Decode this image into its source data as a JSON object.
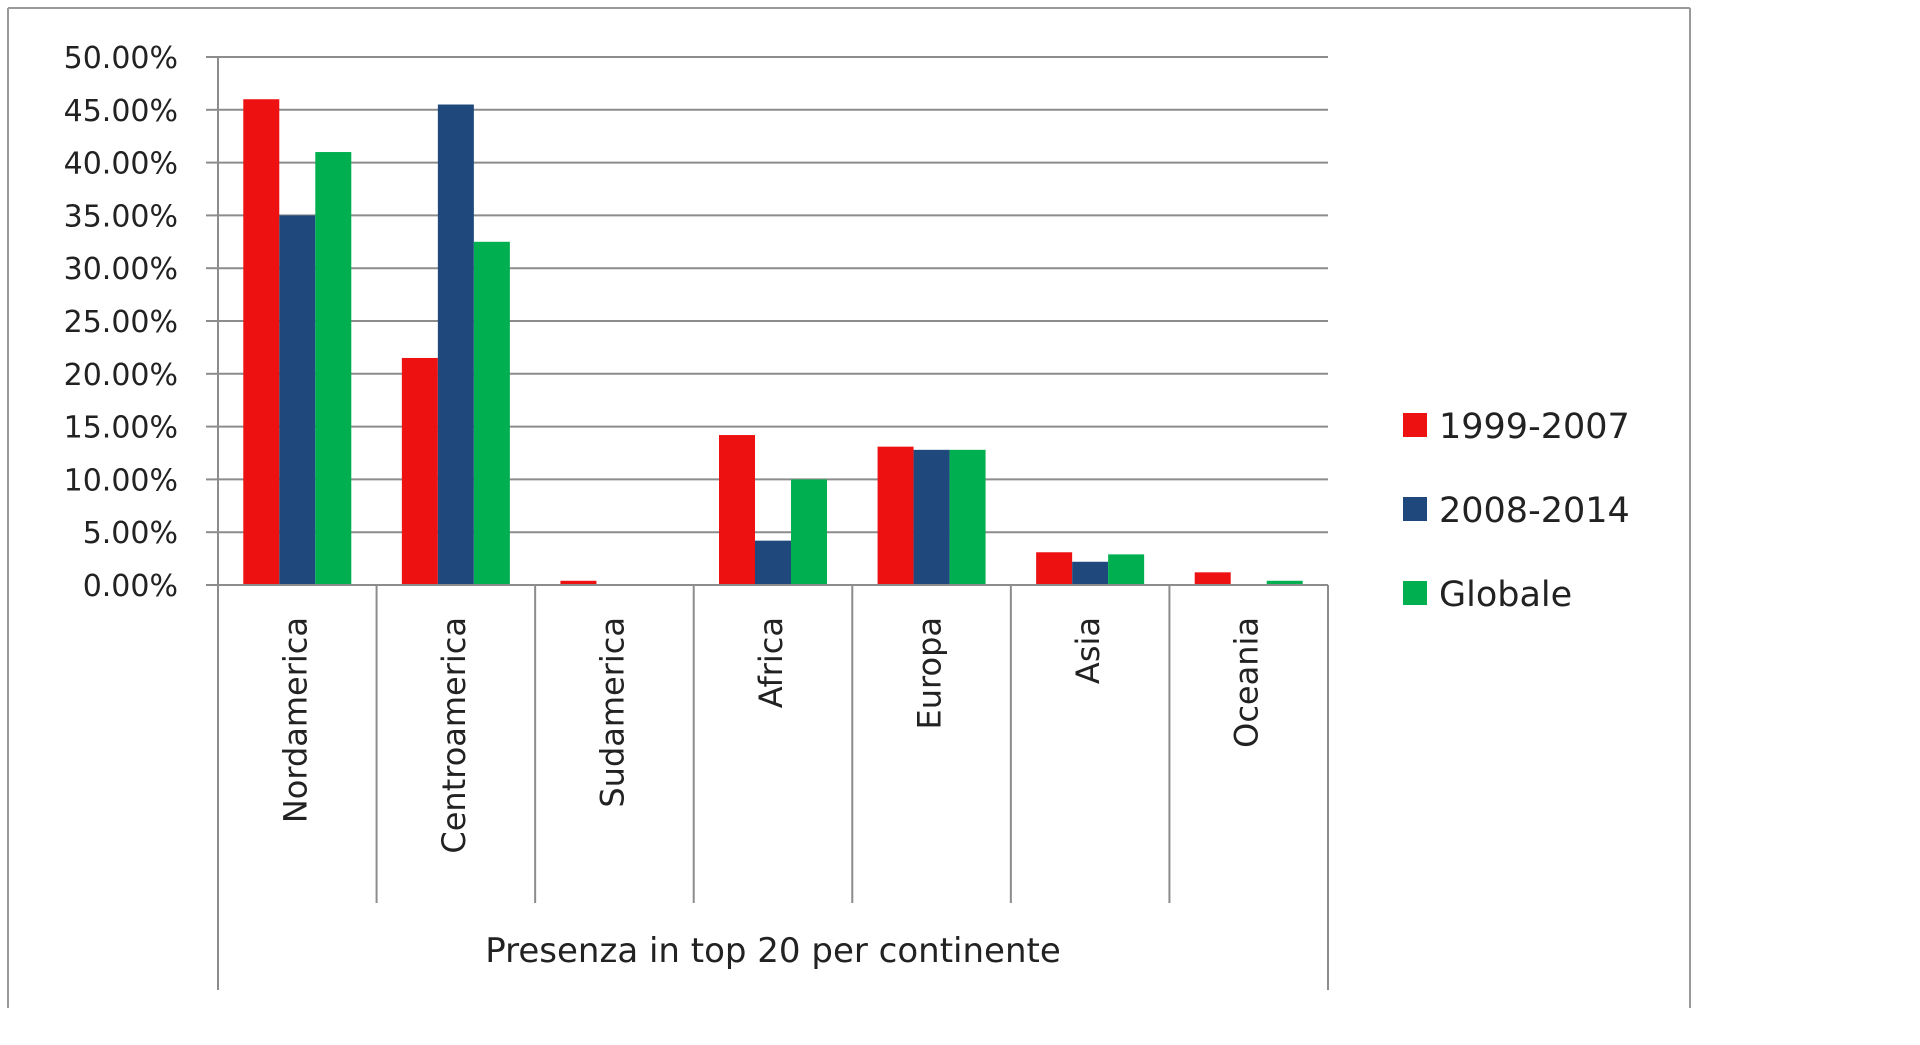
{
  "chart_data": {
    "type": "bar",
    "categories": [
      "Nordamerica",
      "Centroamerica",
      "Sudamerica",
      "Africa",
      "Europa",
      "Asia",
      "Oceania"
    ],
    "group_label": "Presenza in top 20 per continente",
    "series": [
      {
        "name": "1999-2007",
        "color": "#ee1111",
        "values": [
          0.46,
          0.215,
          0.004,
          0.142,
          0.131,
          0.031,
          0.012
        ]
      },
      {
        "name": "2008-2014",
        "color": "#1f497d",
        "values": [
          0.35,
          0.455,
          0.0,
          0.042,
          0.128,
          0.022,
          0.0
        ]
      },
      {
        "name": "Globale",
        "color": "#00b050",
        "values": [
          0.41,
          0.325,
          0.0,
          0.1,
          0.128,
          0.029,
          0.004
        ]
      }
    ],
    "yticks": [
      "0.00%",
      "5.00%",
      "10.00%",
      "15.00%",
      "20.00%",
      "25.00%",
      "30.00%",
      "35.00%",
      "40.00%",
      "45.00%",
      "50.00%"
    ],
    "ylim": [
      0,
      0.5
    ],
    "grid": true,
    "legend_position": "right"
  }
}
